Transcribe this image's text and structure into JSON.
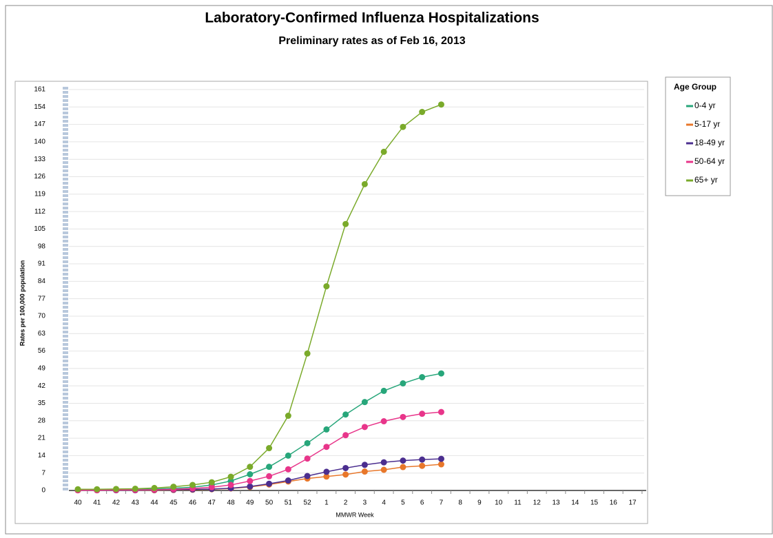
{
  "chart_data": {
    "type": "line",
    "title": "Laboratory-Confirmed Influenza Hospitalizations",
    "subtitle": "Preliminary rates as of Feb 16, 2013",
    "y_label": "Rates per 100,000 population",
    "x_label": "MMWR Week",
    "legend_title": "Age Group",
    "categories": [
      "40",
      "41",
      "42",
      "43",
      "44",
      "45",
      "46",
      "47",
      "48",
      "49",
      "50",
      "51",
      "52",
      "1",
      "2",
      "3",
      "4",
      "5",
      "6",
      "7",
      "8",
      "9",
      "10",
      "11",
      "12",
      "13",
      "14",
      "15",
      "16",
      "17"
    ],
    "series": [
      {
        "name": "0-4 yr",
        "color": "#27a67a",
        "values": [
          0.2,
          0.3,
          0.3,
          0.4,
          0.6,
          0.9,
          1.3,
          2.2,
          3.8,
          6.5,
          9.5,
          14,
          19,
          24.5,
          30.5,
          35.5,
          40,
          43,
          45.5,
          47,
          null,
          null,
          null,
          null,
          null,
          null,
          null,
          null,
          null,
          null
        ]
      },
      {
        "name": "5-17 yr",
        "color": "#e8772a",
        "values": [
          0.1,
          0.1,
          0.1,
          0.1,
          0.1,
          0.2,
          0.3,
          0.5,
          0.8,
          1.4,
          2.4,
          3.6,
          4.8,
          5.6,
          6.4,
          7.6,
          8.3,
          9.4,
          9.9,
          10.5,
          null,
          null,
          null,
          null,
          null,
          null,
          null,
          null,
          null,
          null
        ]
      },
      {
        "name": "18-49 yr",
        "color": "#4b2e8f",
        "values": [
          0.1,
          0.1,
          0.1,
          0.1,
          0.2,
          0.3,
          0.4,
          0.6,
          0.9,
          1.6,
          2.7,
          4,
          5.8,
          7.5,
          9,
          10.3,
          11.3,
          12,
          12.4,
          12.7,
          null,
          null,
          null,
          null,
          null,
          null,
          null,
          null,
          null,
          null
        ]
      },
      {
        "name": "50-64 yr",
        "color": "#e8358a",
        "values": [
          0.1,
          0.1,
          0.2,
          0.2,
          0.3,
          0.5,
          0.8,
          1.3,
          2.2,
          3.8,
          5.7,
          8.5,
          12.8,
          17.5,
          22.2,
          25.5,
          27.8,
          29.5,
          30.8,
          31.5,
          null,
          null,
          null,
          null,
          null,
          null,
          null,
          null,
          null,
          null
        ]
      },
      {
        "name": "65+ yr",
        "color": "#7aaa2a",
        "values": [
          0.5,
          0.5,
          0.6,
          0.7,
          1.0,
          1.5,
          2.2,
          3.3,
          5.5,
          9.5,
          17,
          30,
          55,
          82,
          107,
          123,
          136,
          146,
          152,
          155,
          null,
          null,
          null,
          null,
          null,
          null,
          null,
          null,
          null,
          null
        ]
      }
    ],
    "ylim": [
      0,
      161
    ],
    "yticks": [
      0,
      7,
      14,
      21,
      28,
      35,
      42,
      49,
      56,
      63,
      70,
      77,
      84,
      91,
      98,
      105,
      112,
      119,
      126,
      133,
      140,
      147,
      154,
      161
    ],
    "grid": true,
    "legend_position": "right"
  }
}
